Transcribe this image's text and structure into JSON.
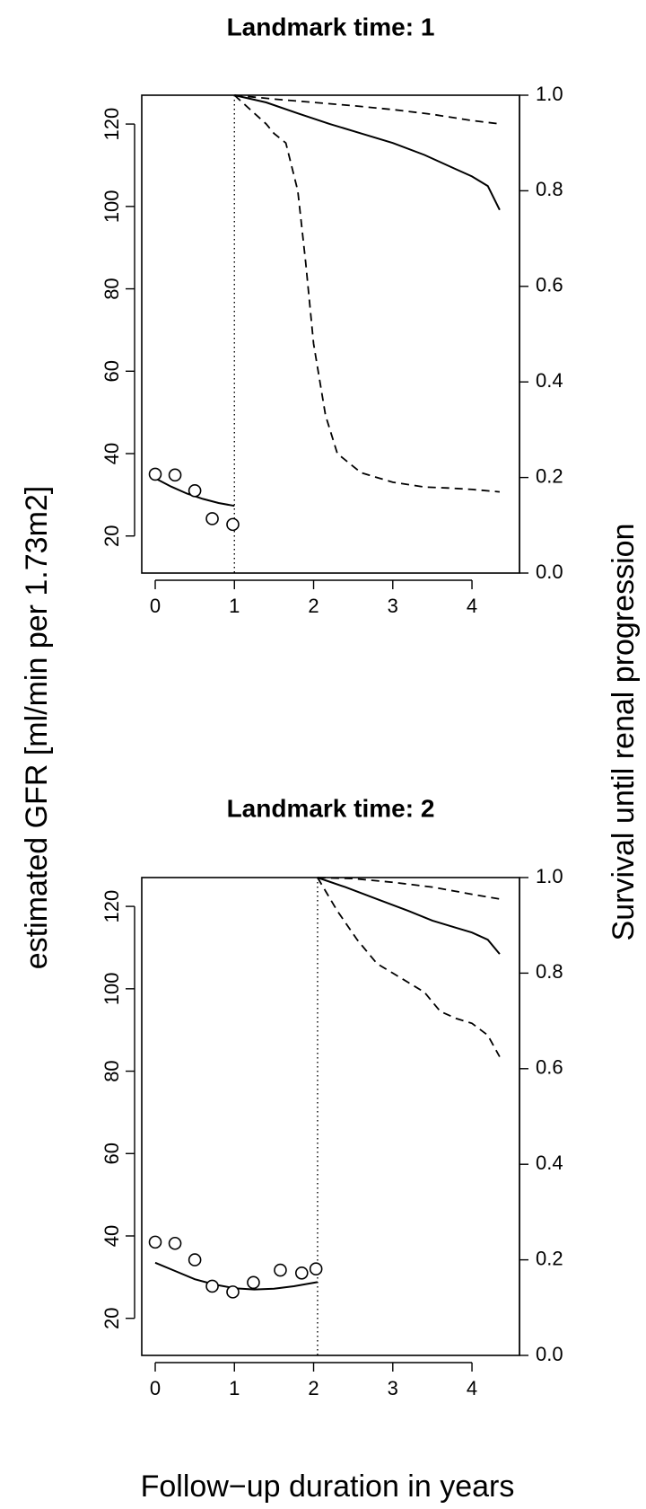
{
  "figure": {
    "ylabel_left": "estimated GFR [ml/min per 1.73m2]",
    "ylabel_right": "Survival until renal progression",
    "xlabel": "Follow−up duration in years"
  },
  "chart_data": [
    {
      "type": "scatter",
      "title": "Landmark time:  1",
      "xlabel": "Follow−up duration in years",
      "ylabel": "estimated GFR [ml/min per 1.73m2]",
      "y2label": "Survival until renal progression",
      "xlim": [
        -0.17,
        4.6
      ],
      "ylim": [
        11,
        127
      ],
      "y2lim": [
        0,
        1
      ],
      "xticks": [
        0,
        1,
        2,
        3,
        4
      ],
      "yticks": [
        20,
        40,
        60,
        80,
        100,
        120
      ],
      "y2ticks": [
        "0.0",
        "0.2",
        "0.4",
        "0.6",
        "0.8",
        "1.0"
      ],
      "landmark": 1,
      "grid": false,
      "observed_gfr": {
        "x": [
          0,
          0.25,
          0.5,
          0.72,
          0.98
        ],
        "y": [
          35,
          34.8,
          31,
          24.2,
          22.8
        ]
      },
      "fitted_gfr": {
        "x": [
          0,
          0.2,
          0.4,
          0.6,
          0.8,
          1.0
        ],
        "y": [
          34,
          32,
          30.3,
          29,
          28,
          27.3
        ]
      },
      "survival": {
        "x": [
          1.0,
          1.4,
          1.8,
          2.2,
          2.6,
          3.0,
          3.4,
          3.8,
          4.0,
          4.2,
          4.35
        ],
        "y": [
          1.0,
          0.985,
          0.962,
          0.94,
          0.92,
          0.9,
          0.875,
          0.845,
          0.83,
          0.81,
          0.76
        ]
      },
      "survival_upper": {
        "x": [
          1.0,
          1.5,
          2.0,
          2.5,
          3.0,
          3.5,
          4.0,
          4.35
        ],
        "y": [
          1.0,
          0.992,
          0.985,
          0.978,
          0.97,
          0.96,
          0.947,
          0.94
        ]
      },
      "survival_lower": {
        "x": [
          1.0,
          1.2,
          1.4,
          1.5,
          1.65,
          1.8,
          1.9,
          2.0,
          2.15,
          2.3,
          2.6,
          3.0,
          3.4,
          3.7,
          4.0,
          4.35
        ],
        "y": [
          1.0,
          0.97,
          0.94,
          0.92,
          0.9,
          0.8,
          0.65,
          0.48,
          0.33,
          0.25,
          0.21,
          0.19,
          0.18,
          0.178,
          0.175,
          0.17
        ]
      }
    },
    {
      "type": "scatter",
      "title": "Landmark time:  2",
      "xlabel": "Follow−up duration in years",
      "ylabel": "estimated GFR [ml/min per 1.73m2]",
      "y2label": "Survival until renal progression",
      "xlim": [
        -0.17,
        4.6
      ],
      "ylim": [
        11,
        127
      ],
      "y2lim": [
        0,
        1
      ],
      "xticks": [
        0,
        1,
        2,
        3,
        4
      ],
      "yticks": [
        20,
        40,
        60,
        80,
        100,
        120
      ],
      "y2ticks": [
        "0.0",
        "0.2",
        "0.4",
        "0.6",
        "0.8",
        "1.0"
      ],
      "landmark": 2.05,
      "grid": false,
      "observed_gfr": {
        "x": [
          0,
          0.25,
          0.5,
          0.72,
          0.98,
          1.24,
          1.58,
          1.85,
          2.03
        ],
        "y": [
          38.5,
          38.2,
          34.2,
          27.8,
          26.4,
          28.7,
          31.7,
          31,
          32
        ]
      },
      "fitted_gfr": {
        "x": [
          0,
          0.25,
          0.5,
          0.75,
          1.0,
          1.25,
          1.5,
          1.75,
          2.05
        ],
        "y": [
          33.5,
          31.5,
          29.5,
          28.2,
          27.3,
          27,
          27.2,
          27.8,
          28.8
        ]
      },
      "survival": {
        "x": [
          2.05,
          2.4,
          2.8,
          3.2,
          3.5,
          3.8,
          4.0,
          4.2,
          4.35
        ],
        "y": [
          1.0,
          0.98,
          0.955,
          0.93,
          0.91,
          0.895,
          0.885,
          0.87,
          0.84
        ]
      },
      "survival_upper": {
        "x": [
          2.05,
          2.5,
          3.0,
          3.5,
          4.0,
          4.35
        ],
        "y": [
          1.0,
          0.998,
          0.99,
          0.98,
          0.965,
          0.955
        ]
      },
      "survival_lower": {
        "x": [
          2.05,
          2.3,
          2.55,
          2.8,
          3.0,
          3.2,
          3.4,
          3.6,
          3.8,
          4.0,
          4.2,
          4.35
        ],
        "y": [
          1.0,
          0.93,
          0.87,
          0.82,
          0.8,
          0.78,
          0.76,
          0.72,
          0.705,
          0.695,
          0.67,
          0.625
        ]
      }
    }
  ]
}
